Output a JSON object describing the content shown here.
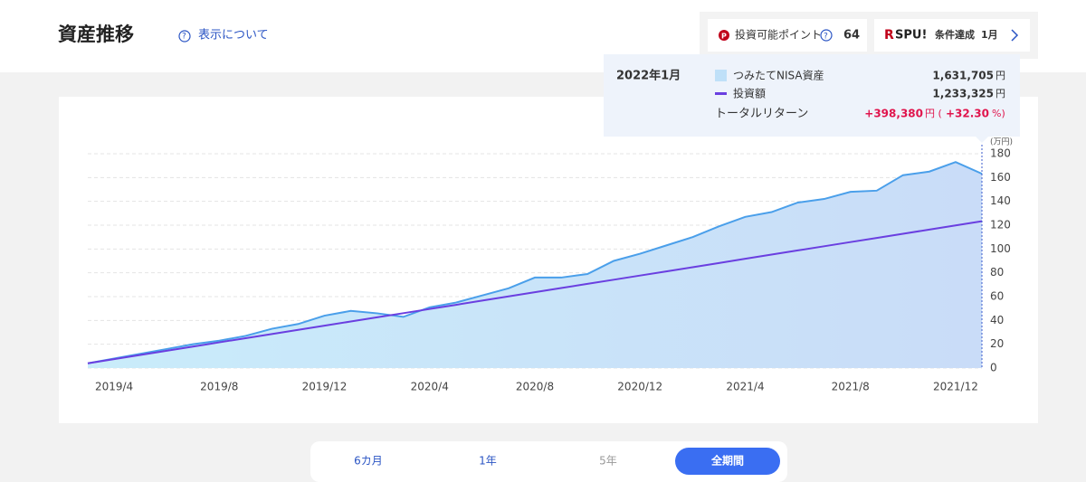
{
  "header": {
    "title": "資産推移",
    "help": "表示について"
  },
  "points": {
    "label": "投資可能ポイント",
    "value": "64"
  },
  "spu": {
    "logo": "SPU!",
    "status": "条件達成",
    "month": "1月"
  },
  "tooltip": {
    "date": "2022年1月",
    "rows": [
      {
        "label": "つみたてNISA資産",
        "amount": "1,631,705",
        "unit": "円"
      },
      {
        "label": "投資額",
        "amount": "1,233,325",
        "unit": "円"
      }
    ],
    "return_label": "トータルリターン",
    "return_amount": "+398,380",
    "return_unit": "円 (",
    "return_pct": "+32.30",
    "return_pct_unit": "%)"
  },
  "chart_data": {
    "type": "area",
    "y_unit": "(万円)",
    "categories": [
      null,
      "2019/4",
      null,
      null,
      null,
      "2019/8",
      null,
      null,
      null,
      "2019/12",
      null,
      null,
      null,
      "2020/4",
      null,
      null,
      null,
      "2020/8",
      null,
      null,
      null,
      "2020/12",
      null,
      null,
      null,
      "2021/4",
      null,
      null,
      null,
      "2021/8",
      null,
      null,
      null,
      "2021/12",
      null
    ],
    "series": [
      {
        "name": "つみたてNISA資産",
        "color": "#4a9fea",
        "values": [
          4,
          8,
          12,
          16,
          20,
          23,
          27,
          33,
          37,
          44,
          48,
          46,
          43,
          51,
          55,
          61,
          67,
          76,
          76,
          79,
          90,
          96,
          103,
          110,
          119,
          127,
          131,
          139,
          142,
          148,
          149,
          162,
          165,
          173,
          163.2
        ]
      },
      {
        "name": "投資額",
        "color": "#6a3fe0",
        "values": [
          4,
          7.5,
          11,
          14.5,
          18,
          21.6,
          25.1,
          28.6,
          32.1,
          35.6,
          39.1,
          42.6,
          46.1,
          49.6,
          53.1,
          56.7,
          60.2,
          63.7,
          67.2,
          70.7,
          74.2,
          77.7,
          81.2,
          84.7,
          88.2,
          91.8,
          95.3,
          98.8,
          102.3,
          105.8,
          109.3,
          112.8,
          116.3,
          119.8,
          123.3
        ]
      }
    ],
    "ylim": [
      0,
      180
    ],
    "yticks": [
      0,
      20,
      40,
      60,
      80,
      100,
      120,
      140,
      160,
      180
    ],
    "grid": true
  },
  "periods": [
    "6カ月",
    "1年",
    "5年",
    "全期間"
  ]
}
